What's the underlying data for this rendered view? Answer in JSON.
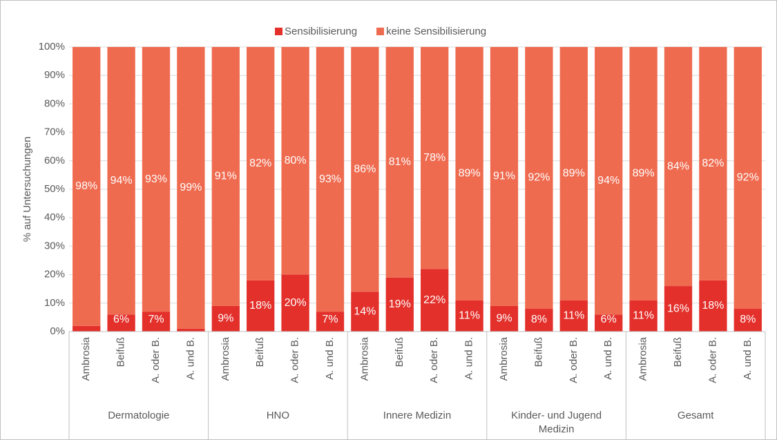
{
  "chart_data": {
    "type": "stacked_bar",
    "y_label": "% auf Untersuchungen",
    "groups": [
      "Dermatologie",
      "HNO",
      "Innere Medizin",
      "Kinder- und Jugend Medizin",
      "Gesamt"
    ],
    "categories": [
      "Ambrosia",
      "Beifuß",
      "A. oder B.",
      "A. und B.",
      "Ambrosia",
      "Beifuß",
      "A. oder B.",
      "A. und B.",
      "Ambrosia",
      "Beifuß",
      "A. oder B.",
      "A. und B.",
      "Ambrosia",
      "Beifuß",
      "A. oder B.",
      "A. und B.",
      "Ambrosia",
      "Beifuß",
      "A. oder B.",
      "A. und B."
    ],
    "series": [
      {
        "name": "Sensibilisierung",
        "color": "#e3302b",
        "values": [
          2,
          6,
          7,
          1,
          9,
          18,
          20,
          7,
          14,
          19,
          22,
          11,
          9,
          8,
          11,
          6,
          11,
          16,
          18,
          8
        ],
        "value_labels": [
          "2%",
          "6%",
          "7%",
          "1%",
          "9%",
          "18%",
          "20%",
          "7%",
          "14%",
          "19%",
          "22%",
          "11%",
          "9%",
          "8%",
          "11%",
          "6%",
          "11%",
          "16%",
          "18%",
          "8%"
        ]
      },
      {
        "name": "keine Sensibilisierung",
        "color": "#ef6b50",
        "values": [
          98,
          94,
          93,
          99,
          91,
          82,
          80,
          93,
          86,
          81,
          78,
          89,
          91,
          92,
          89,
          94,
          89,
          84,
          82,
          92
        ],
        "value_labels": [
          "98%",
          "94%",
          "93%",
          "99%",
          "91%",
          "82%",
          "80%",
          "93%",
          "86%",
          "81%",
          "78%",
          "89%",
          "91%",
          "92%",
          "89%",
          "94%",
          "89%",
          "84%",
          "82%",
          "92%"
        ]
      }
    ],
    "ylim": [
      0,
      100
    ],
    "yticks": [
      {
        "value": 0,
        "label": "0%"
      },
      {
        "value": 10,
        "label": "10%"
      },
      {
        "value": 20,
        "label": "20%"
      },
      {
        "value": 30,
        "label": "30%"
      },
      {
        "value": 40,
        "label": "40%"
      },
      {
        "value": 50,
        "label": "50%"
      },
      {
        "value": 60,
        "label": "60%"
      },
      {
        "value": 70,
        "label": "70%"
      },
      {
        "value": 80,
        "label": "80%"
      },
      {
        "value": 90,
        "label": "90%"
      },
      {
        "value": 100,
        "label": "100%"
      }
    ],
    "grid": true,
    "legend": "top"
  }
}
